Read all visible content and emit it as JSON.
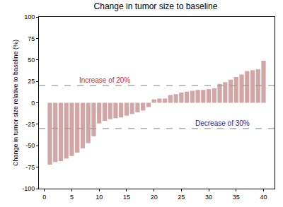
{
  "chart_data": {
    "type": "bar",
    "title": "Change in tumor size to baseline",
    "y_label": "Change in tumor size relative to baseline (%)",
    "x": [
      1,
      2,
      3,
      4,
      5,
      6,
      7,
      8,
      9,
      10,
      11,
      12,
      13,
      14,
      15,
      16,
      17,
      18,
      19,
      20,
      21,
      22,
      23,
      24,
      25,
      26,
      27,
      28,
      29,
      30,
      31,
      32,
      33,
      34,
      35,
      36,
      37,
      38,
      39,
      40
    ],
    "values": [
      -72,
      -69,
      -68,
      -65,
      -62,
      -58,
      -53,
      -47,
      -39,
      -24,
      -21,
      -19,
      -18,
      -17,
      -15,
      -13,
      -11,
      -9,
      -5,
      4,
      5,
      5,
      9,
      10,
      12,
      13,
      14,
      15,
      15,
      16,
      17,
      22,
      24,
      27,
      30,
      33,
      37,
      38,
      39,
      49
    ],
    "color": "#d3a6a6",
    "xlim": [
      -1,
      42
    ],
    "xticks": [
      0,
      5,
      10,
      15,
      20,
      25,
      30,
      35,
      40
    ],
    "ylim": [
      -100,
      100
    ],
    "yticks": [
      -100,
      -75,
      -50,
      -25,
      0,
      25,
      50,
      75,
      100
    ],
    "grid": false,
    "reference_lines": [
      {
        "value": 20,
        "label": "Increase of 20%",
        "color": "#d62728"
      },
      {
        "value": -30,
        "label": "Decrease of 30%",
        "color": "#1f1fa0"
      }
    ]
  }
}
